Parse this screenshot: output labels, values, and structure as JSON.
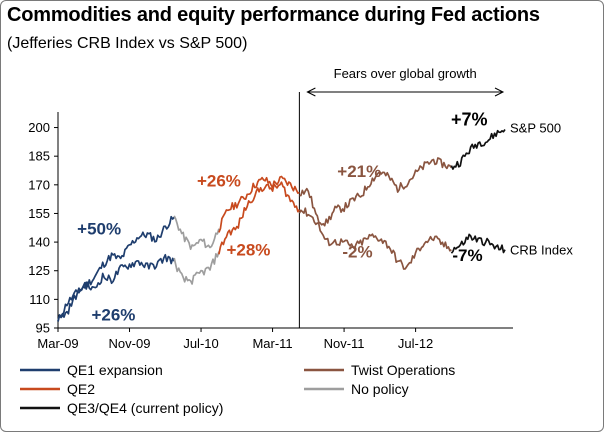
{
  "title": "Commodities and equity performance during Fed actions",
  "subtitle": "(Jefferies CRB Index vs S&P 500)",
  "chart_data": {
    "type": "line",
    "xlabel": "",
    "ylabel": "",
    "ylim": [
      95,
      205
    ],
    "yticks": [
      95,
      110,
      125,
      140,
      155,
      170,
      185,
      200
    ],
    "xlim": [
      "2009-03",
      "2013-05"
    ],
    "xticks": [
      "Mar-09",
      "Nov-09",
      "Jul-10",
      "Mar-11",
      "Nov-11",
      "Jul-12"
    ],
    "grid": false,
    "legend_position": "bottom",
    "regimes": [
      {
        "name": "QE1 expansion",
        "color": "#1f3e6e",
        "start": 0,
        "end": 13
      },
      {
        "name": "No policy",
        "color": "#9e9e9e",
        "start": 13,
        "end": 18
      },
      {
        "name": "QE2",
        "color": "#c84a1e",
        "start": 18,
        "end": 27
      },
      {
        "name": "Twist Operations",
        "color": "#8a5540",
        "start": 27,
        "end": 44
      },
      {
        "name": "QE3/QE4 (current policy)",
        "color": "#111111",
        "start": 44,
        "end": 50
      }
    ],
    "series": [
      {
        "name": "S&P 500",
        "x": [
          "2009-03",
          "2009-04",
          "2009-05",
          "2009-06",
          "2009-07",
          "2009-08",
          "2009-09",
          "2009-10",
          "2009-11",
          "2009-12",
          "2010-01",
          "2010-02",
          "2010-03",
          "2010-04",
          "2010-05",
          "2010-06",
          "2010-07",
          "2010-08",
          "2010-09",
          "2010-10",
          "2010-11",
          "2010-12",
          "2011-01",
          "2011-02",
          "2011-03",
          "2011-04",
          "2011-05",
          "2011-06",
          "2011-07",
          "2011-08",
          "2011-09",
          "2011-10",
          "2011-11",
          "2011-12",
          "2012-01",
          "2012-02",
          "2012-03",
          "2012-04",
          "2012-05",
          "2012-06",
          "2012-07",
          "2012-08",
          "2012-09",
          "2012-10",
          "2012-11",
          "2012-12",
          "2013-01",
          "2013-02",
          "2013-03",
          "2013-04",
          "2013-05"
        ],
        "values": [
          98,
          108,
          113,
          117,
          121,
          128,
          133,
          131,
          138,
          143,
          144,
          141,
          148,
          153,
          143,
          137,
          141,
          137,
          147,
          157,
          160,
          164,
          170,
          173,
          170,
          173,
          170,
          166,
          167,
          152,
          150,
          157,
          158,
          162,
          165,
          172,
          177,
          174,
          168,
          171,
          176,
          180,
          183,
          181,
          179,
          182,
          188,
          192,
          193,
          197,
          199
        ]
      },
      {
        "name": "CRB Index",
        "x": [
          "2009-03",
          "2009-04",
          "2009-05",
          "2009-06",
          "2009-07",
          "2009-08",
          "2009-09",
          "2009-10",
          "2009-11",
          "2009-12",
          "2010-01",
          "2010-02",
          "2010-03",
          "2010-04",
          "2010-05",
          "2010-06",
          "2010-07",
          "2010-08",
          "2010-09",
          "2010-10",
          "2010-11",
          "2010-12",
          "2011-01",
          "2011-02",
          "2011-03",
          "2011-04",
          "2011-05",
          "2011-06",
          "2011-07",
          "2011-08",
          "2011-09",
          "2011-10",
          "2011-11",
          "2011-12",
          "2012-01",
          "2012-02",
          "2012-03",
          "2012-04",
          "2012-05",
          "2012-06",
          "2012-07",
          "2012-08",
          "2012-09",
          "2012-10",
          "2012-11",
          "2012-12",
          "2013-01",
          "2013-02",
          "2013-03",
          "2013-04",
          "2013-05"
        ],
        "values": [
          100,
          103,
          112,
          118,
          115,
          122,
          120,
          126,
          128,
          130,
          127,
          128,
          132,
          130,
          120,
          120,
          124,
          126,
          135,
          145,
          147,
          158,
          165,
          169,
          168,
          170,
          162,
          157,
          155,
          150,
          140,
          140,
          140,
          137,
          140,
          143,
          142,
          138,
          130,
          126,
          134,
          140,
          142,
          139,
          136,
          138,
          143,
          141,
          140,
          137,
          136
        ]
      }
    ],
    "annotations": {
      "qe1_sp": "+50%",
      "qe1_crb": "+26%",
      "qe2_sp": "+26%",
      "qe2_crb": "+28%",
      "twist_sp": "+21%",
      "twist_crb": "-2%",
      "cur_sp": "+7%",
      "cur_crb": "-7%",
      "sp_label": "S&P 500",
      "crb_label": "CRB Index",
      "fears": "Fears over global growth"
    }
  }
}
